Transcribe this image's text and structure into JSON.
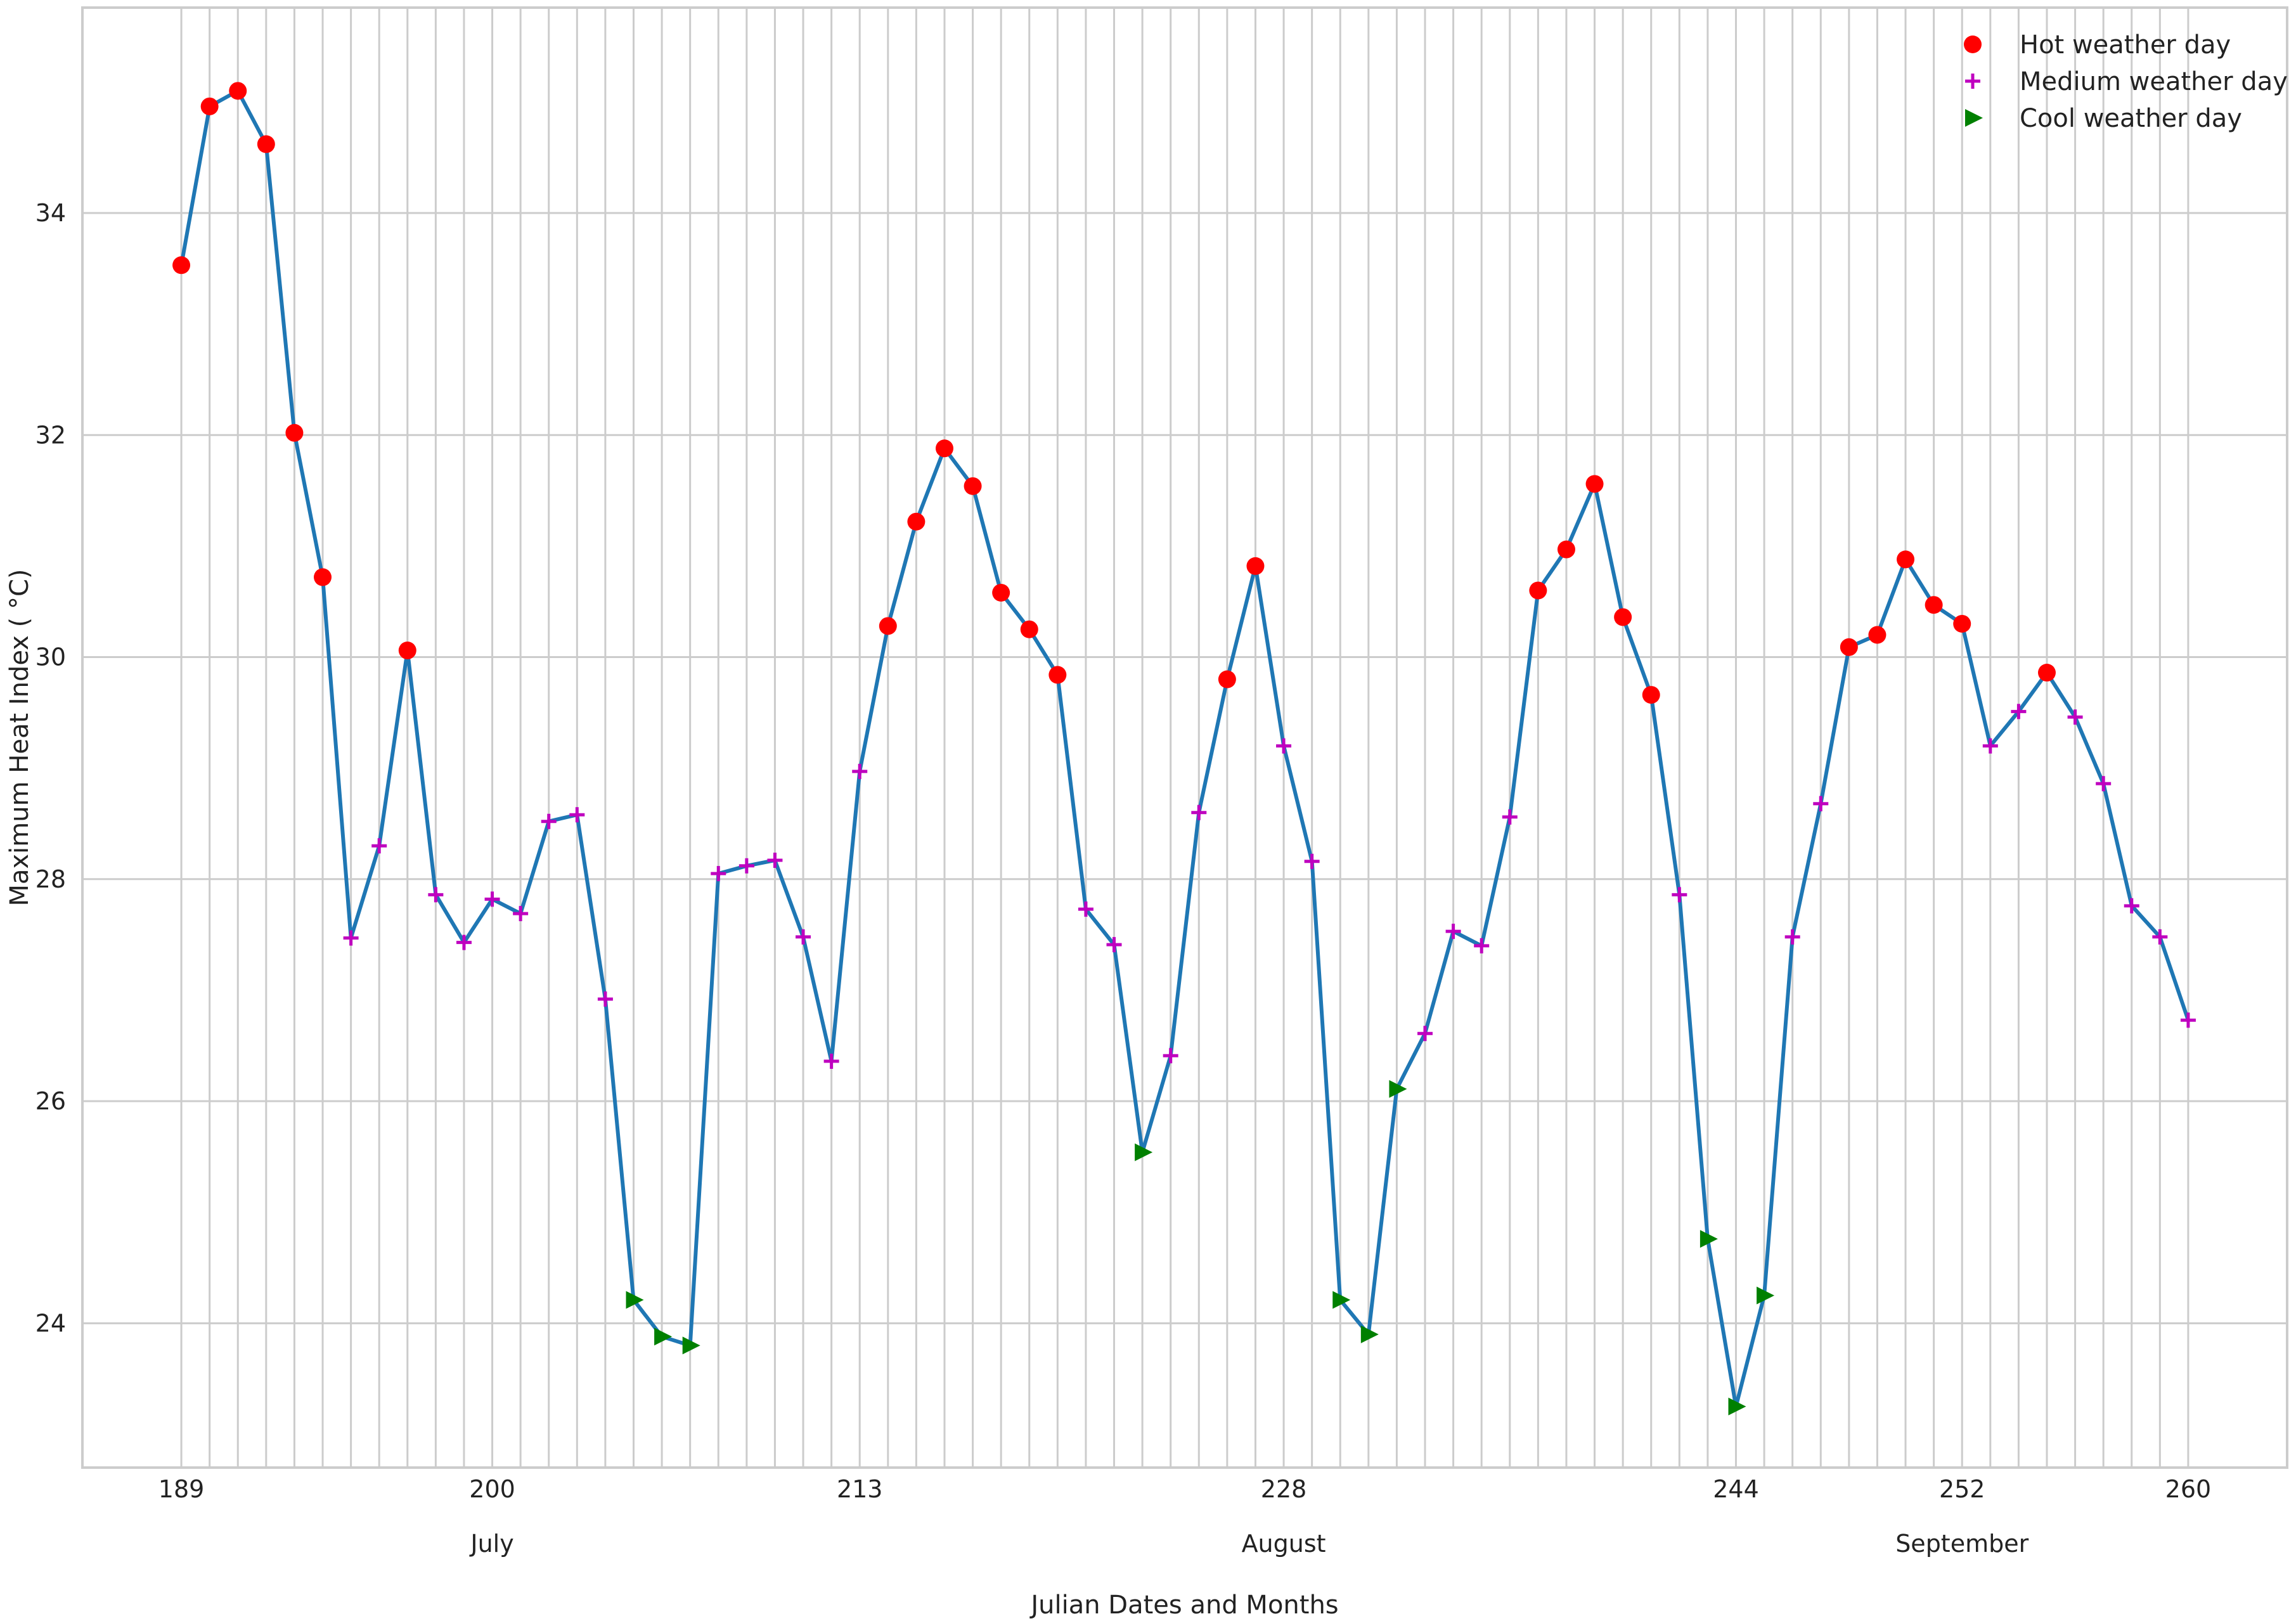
{
  "chart_data": {
    "type": "line",
    "xlabel": "Julian Dates and Months",
    "ylabel": "Maximum Heat Index ($^\\circ$C)",
    "ylabel_display": "Maximum Heat Index ( °C)",
    "xlim": [
      185.5,
      263.5
    ],
    "ylim": [
      22.7,
      35.85
    ],
    "x_tick_labels": [
      "189",
      "200",
      "213",
      "228",
      "244",
      "252",
      "260"
    ],
    "x_tick_values": [
      189,
      200,
      213,
      228,
      244,
      252,
      260
    ],
    "y_ticks": [
      24,
      26,
      28,
      30,
      32,
      34
    ],
    "months": [
      {
        "label": "July",
        "x": 200
      },
      {
        "label": "August",
        "x": 228
      },
      {
        "label": "September",
        "x": 252
      }
    ],
    "grid": true,
    "legend_position": "top-right",
    "line_color": "#1f77b4",
    "series": [
      {
        "name": "Hot weather day",
        "marker": "circle",
        "color": "#ff0000"
      },
      {
        "name": "Medium weather day",
        "marker": "plus",
        "color": "#bf00bf"
      },
      {
        "name": "Cool weather day",
        "marker": "triangle-right",
        "color": "#008000"
      }
    ],
    "x": [
      189,
      190,
      191,
      192,
      193,
      194,
      195,
      196,
      197,
      198,
      199,
      200,
      201,
      202,
      203,
      204,
      205,
      206,
      207,
      208,
      209,
      210,
      211,
      212,
      213,
      214,
      215,
      216,
      217,
      218,
      219,
      220,
      221,
      222,
      223,
      224,
      225,
      226,
      227,
      228,
      229,
      230,
      231,
      232,
      233,
      234,
      235,
      236,
      237,
      238,
      239,
      240,
      241,
      242,
      243,
      244,
      245,
      246,
      247,
      248,
      249,
      250,
      251,
      252,
      253,
      254,
      255,
      256,
      257,
      258,
      259,
      260
    ],
    "values": [
      33.53,
      34.96,
      35.1,
      34.62,
      32.02,
      30.72,
      27.47,
      28.3,
      30.06,
      27.86,
      27.43,
      27.82,
      27.69,
      28.52,
      28.58,
      26.92,
      24.21,
      23.88,
      23.8,
      28.05,
      28.12,
      28.17,
      27.48,
      26.36,
      28.97,
      30.28,
      31.22,
      31.88,
      31.54,
      30.58,
      30.25,
      29.84,
      27.73,
      27.41,
      25.54,
      26.41,
      28.6,
      29.8,
      30.82,
      29.2,
      28.16,
      24.21,
      23.9,
      26.11,
      26.61,
      27.53,
      27.4,
      28.56,
      30.6,
      30.97,
      31.56,
      30.36,
      29.66,
      27.86,
      24.76,
      23.25,
      24.25,
      27.48,
      28.68,
      30.09,
      30.2,
      30.88,
      30.47,
      30.3,
      29.2,
      29.51,
      29.86,
      29.46,
      28.86,
      27.76,
      27.48,
      26.73
    ],
    "categories": [
      "hot",
      "hot",
      "hot",
      "hot",
      "hot",
      "hot",
      "medium",
      "medium",
      "hot",
      "medium",
      "medium",
      "medium",
      "medium",
      "medium",
      "medium",
      "medium",
      "cool",
      "cool",
      "cool",
      "medium",
      "medium",
      "medium",
      "medium",
      "medium",
      "medium",
      "hot",
      "hot",
      "hot",
      "hot",
      "hot",
      "hot",
      "hot",
      "medium",
      "medium",
      "cool",
      "medium",
      "medium",
      "hot",
      "hot",
      "medium",
      "medium",
      "cool",
      "cool",
      "cool",
      "medium",
      "medium",
      "medium",
      "medium",
      "hot",
      "hot",
      "hot",
      "hot",
      "hot",
      "medium",
      "cool",
      "cool",
      "cool",
      "medium",
      "medium",
      "hot",
      "hot",
      "hot",
      "hot",
      "hot",
      "medium",
      "medium",
      "hot",
      "medium",
      "medium",
      "medium",
      "medium",
      "medium"
    ]
  }
}
